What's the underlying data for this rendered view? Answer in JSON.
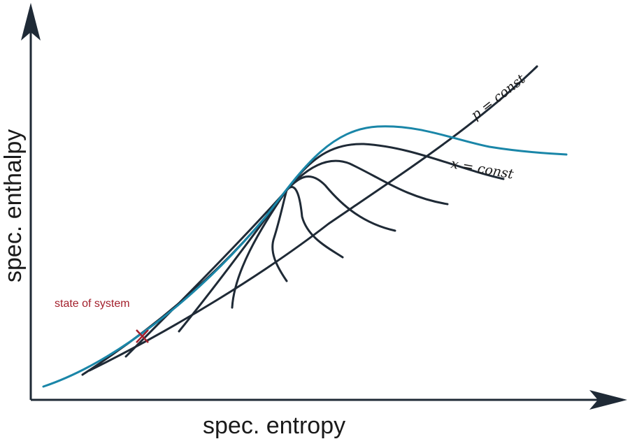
{
  "axes": {
    "x_label": "spec. entropy",
    "y_label": "spec. enthalpy"
  },
  "annotations": {
    "state_label": "state of system",
    "pressure_label": "p = const",
    "quality_label": "x = const"
  },
  "colors": {
    "axis": "#1f2a36",
    "curves": "#1f2a36",
    "saturation_curve": "#1a86a8",
    "state_marker": "#a3202c"
  }
}
